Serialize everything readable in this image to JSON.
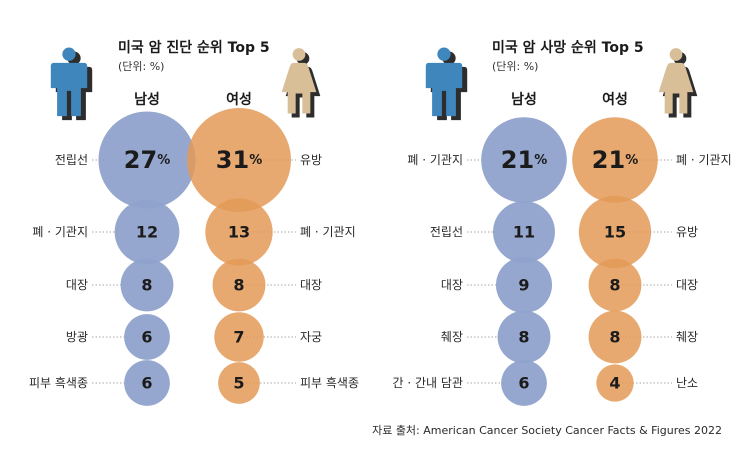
{
  "colors": {
    "male": "#8fa2cc",
    "female": "#e39a57",
    "overlap": "#8b6a5b",
    "male_icon": "#3f86bd",
    "female_icon": "#d8bf98",
    "icon_shadow": "#2d2d2d"
  },
  "source": "자료 출처: American Cancer Society Cancer Facts & Figures 2022",
  "chart_data": [
    {
      "type": "bubble",
      "title": "미국 암 진단 순위 Top 5",
      "unit_label": "(단위: %)",
      "legend": {
        "male": "남성",
        "female": "여성"
      },
      "male": [
        {
          "label": "전립선",
          "value": 27,
          "display": "27"
        },
        {
          "label": "폐 · 기관지",
          "value": 12,
          "display": "12"
        },
        {
          "label": "대장",
          "value": 8,
          "display": "8"
        },
        {
          "label": "방광",
          "value": 6,
          "display": "6"
        },
        {
          "label": "피부 흑색종",
          "value": 6,
          "display": "6"
        }
      ],
      "female": [
        {
          "label": "유방",
          "value": 31,
          "display": "31"
        },
        {
          "label": "폐 · 기관지",
          "value": 13,
          "display": "13"
        },
        {
          "label": "대장",
          "value": 8,
          "display": "8"
        },
        {
          "label": "자궁",
          "value": 7,
          "display": "7"
        },
        {
          "label": "피부 흑색종",
          "value": 5,
          "display": "5"
        }
      ]
    },
    {
      "type": "bubble",
      "title": "미국 암 사망 순위 Top 5",
      "unit_label": "(단위: %)",
      "legend": {
        "male": "남성",
        "female": "여성"
      },
      "male": [
        {
          "label": "폐 · 기관지",
          "value": 21,
          "display": "21"
        },
        {
          "label": "전립선",
          "value": 11,
          "display": "11"
        },
        {
          "label": "대장",
          "value": 9,
          "display": "9"
        },
        {
          "label": "췌장",
          "value": 8,
          "display": "8"
        },
        {
          "label": "간 · 간내 담관",
          "value": 6,
          "display": "6"
        }
      ],
      "female": [
        {
          "label": "폐 · 기관지",
          "value": 21,
          "display": "21"
        },
        {
          "label": "유방",
          "value": 15,
          "display": "15"
        },
        {
          "label": "대장",
          "value": 8,
          "display": "8"
        },
        {
          "label": "췌장",
          "value": 8,
          "display": "8"
        },
        {
          "label": "난소",
          "value": 4,
          "display": "4"
        }
      ]
    }
  ]
}
